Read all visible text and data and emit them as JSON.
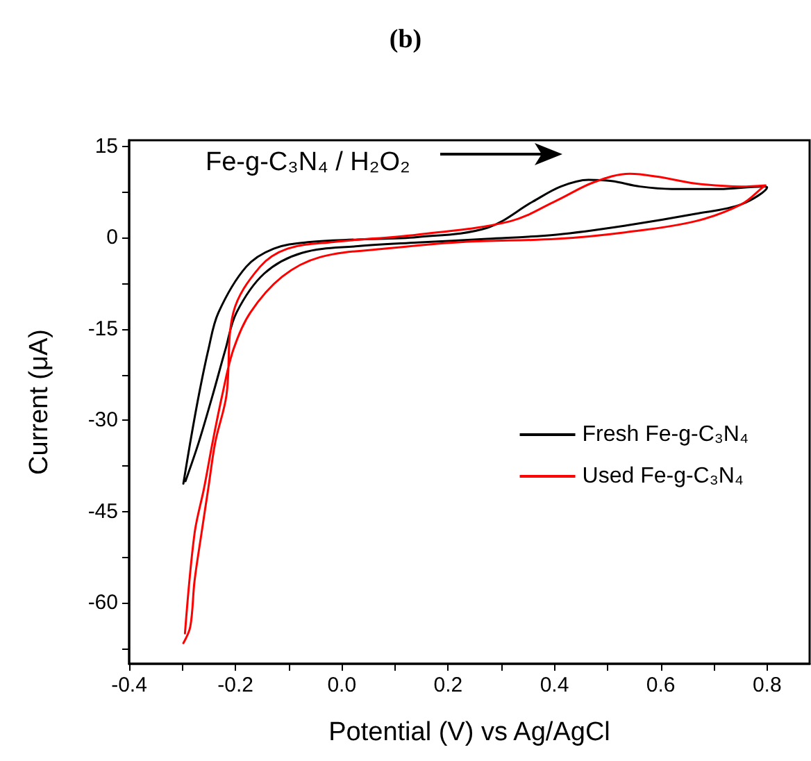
{
  "chart_data": {
    "type": "line",
    "title": "(b)",
    "xlabel": "Potential (V) vs Ag/AgCl",
    "ylabel": "Current (μA)",
    "xlim": [
      -0.4,
      0.88
    ],
    "ylim": [
      -70,
      16
    ],
    "xticks": [
      {
        "value": -0.4,
        "label": "-0.4"
      },
      {
        "value": -0.3,
        "label": null
      },
      {
        "value": -0.2,
        "label": "-0.2"
      },
      {
        "value": -0.1,
        "label": null
      },
      {
        "value": 0,
        "label": "0.0"
      },
      {
        "value": 0.1,
        "label": null
      },
      {
        "value": 0.2,
        "label": "0.2"
      },
      {
        "value": 0.3,
        "label": null
      },
      {
        "value": 0.4,
        "label": "0.4"
      },
      {
        "value": 0.5,
        "label": null
      },
      {
        "value": 0.6,
        "label": "0.6"
      },
      {
        "value": 0.7,
        "label": null
      },
      {
        "value": 0.8,
        "label": "0.8"
      }
    ],
    "yticks": [
      {
        "value": -67.5,
        "label": null
      },
      -60,
      {
        "value": -52.5,
        "label": null
      },
      -45,
      {
        "value": -37.5,
        "label": null
      },
      -30,
      {
        "value": -22.5,
        "label": null
      },
      -15,
      {
        "value": -7.5,
        "label": null
      },
      0,
      {
        "value": 7.5,
        "label": null
      },
      15
    ],
    "grid": false,
    "legend": "right",
    "marker": "none",
    "line_style": "solid",
    "annotations": [
      "Fe-g-C₃N₄ / H₂O₂"
    ],
    "series": [
      {
        "name": "Fresh Fe-g-C₃N₄",
        "color": "#000000",
        "x": [
          -0.298,
          -0.285,
          -0.269,
          -0.251,
          -0.232,
          -0.18,
          -0.128,
          -0.06,
          0.03,
          0.142,
          0.273,
          0.359,
          0.412,
          0.464,
          0.508,
          0.561,
          0.621,
          0.71,
          0.791,
          0.8,
          0.752,
          0.665,
          0.535,
          0.404,
          0.273,
          0.142,
          0.03,
          -0.075,
          -0.146,
          -0.198,
          -0.219,
          -0.243,
          -0.269,
          -0.294
        ],
        "values": [
          -40.4,
          -33.6,
          -25.9,
          -18.4,
          -12.3,
          -4.8,
          -1.8,
          -0.7,
          -0.3,
          0.1,
          1.6,
          5.9,
          8.4,
          9.5,
          9.3,
          8.4,
          8,
          8,
          8.4,
          8.3,
          5.5,
          3.9,
          2,
          0.5,
          -0.2,
          -0.8,
          -1.4,
          -2.5,
          -5.9,
          -12.3,
          -18.4,
          -25.9,
          -33.6,
          -40
        ]
      },
      {
        "name": "Used Fe-g-C₃N₄",
        "color": "#ff0000",
        "x": [
          -0.298,
          -0.285,
          -0.277,
          -0.264,
          -0.251,
          -0.238,
          -0.217,
          -0.204,
          -0.154,
          -0.102,
          -0.015,
          0.142,
          0.317,
          0.404,
          0.474,
          0.542,
          0.595,
          0.665,
          0.752,
          0.797,
          0.791,
          0.752,
          0.665,
          0.535,
          0.404,
          0.228,
          0.082,
          -0.041,
          -0.112,
          -0.172,
          -0.204,
          -0.225,
          -0.243,
          -0.259,
          -0.277,
          -0.295
        ],
        "values": [
          -66.6,
          -63.9,
          -56.4,
          -48.6,
          -41.1,
          -33.6,
          -25.9,
          -12.3,
          -4.8,
          -1.8,
          -0.7,
          0.5,
          2.7,
          6.1,
          9.1,
          10.5,
          10,
          8.9,
          8.4,
          8.6,
          8.2,
          5.5,
          2.7,
          0.9,
          -0.2,
          -0.7,
          -1.8,
          -3.2,
          -6.4,
          -12.3,
          -18.4,
          -25.9,
          -33.6,
          -41.1,
          -48.6,
          -65
        ]
      }
    ]
  }
}
